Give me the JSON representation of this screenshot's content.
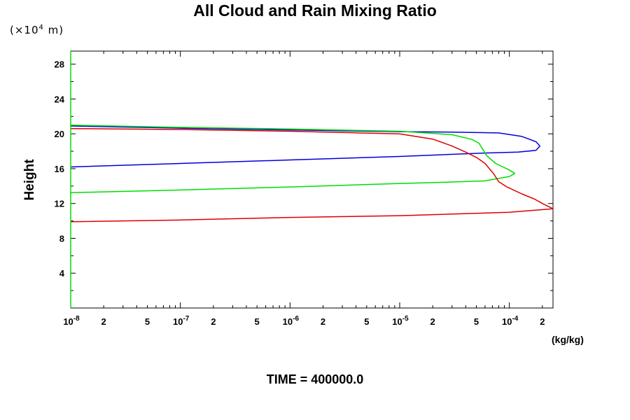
{
  "chart_data": {
    "type": "line",
    "title": "All Cloud and Rain Mixing Ratio",
    "ylabel": "Height",
    "y_scale_note": "×10",
    "y_scale_exponent": "4",
    "y_scale_unit": "m",
    "xunit": "(kg/kg)",
    "footer": "TIME = 400000.0",
    "x_scale": "log",
    "xlim": [
      1e-08,
      0.00025
    ],
    "ylim": [
      0,
      29.5
    ],
    "y_ticks": [
      4,
      8,
      12,
      16,
      20,
      24,
      28
    ],
    "y_tick_labels": [
      "4",
      "8",
      "12",
      "16",
      "20",
      "24",
      "28"
    ],
    "x_tick_labels": [
      {
        "x": 1e-08,
        "base": "10",
        "exp": "-8"
      },
      {
        "x": 2e-08,
        "text": "2"
      },
      {
        "x": 5e-08,
        "text": "5"
      },
      {
        "x": 1e-07,
        "base": "10",
        "exp": "-7"
      },
      {
        "x": 2e-07,
        "text": "2"
      },
      {
        "x": 5e-07,
        "text": "5"
      },
      {
        "x": 1e-06,
        "base": "10",
        "exp": "-6"
      },
      {
        "x": 2e-06,
        "text": "2"
      },
      {
        "x": 5e-06,
        "text": "5"
      },
      {
        "x": 1e-05,
        "base": "10",
        "exp": "-5"
      },
      {
        "x": 2e-05,
        "text": "2"
      },
      {
        "x": 5e-05,
        "text": "5"
      },
      {
        "x": 0.0001,
        "base": "10",
        "exp": "-4"
      },
      {
        "x": 0.0002,
        "text": "2"
      }
    ],
    "series": [
      {
        "color": "#0000dd",
        "points": [
          [
            1e-08,
            20.9
          ],
          [
            1e-07,
            20.65
          ],
          [
            1e-06,
            20.45
          ],
          [
            1e-05,
            20.25
          ],
          [
            3e-05,
            20.2
          ],
          [
            8e-05,
            20.1
          ],
          [
            0.00013,
            19.7
          ],
          [
            0.000175,
            19.1
          ],
          [
            0.00019,
            18.6
          ],
          [
            0.000175,
            18.1
          ],
          [
            0.00012,
            17.9
          ],
          [
            6e-05,
            17.8
          ],
          [
            1e-05,
            17.4
          ],
          [
            1e-06,
            17.0
          ],
          [
            1e-07,
            16.6
          ],
          [
            1e-08,
            16.2
          ]
        ]
      },
      {
        "color": "#00dd00",
        "points": [
          [
            1e-08,
            21.0
          ],
          [
            1e-07,
            20.75
          ],
          [
            1e-06,
            20.55
          ],
          [
            1e-05,
            20.3
          ],
          [
            3e-05,
            19.9
          ],
          [
            4.6e-05,
            19.35
          ],
          [
            5.3e-05,
            18.9
          ],
          [
            5.8e-05,
            18.1
          ],
          [
            6.2e-05,
            17.5
          ],
          [
            7.5e-05,
            16.6
          ],
          [
            9.8e-05,
            15.9
          ],
          [
            0.000112,
            15.45
          ],
          [
            0.0001,
            15.1
          ],
          [
            6e-05,
            14.6
          ],
          [
            2e-05,
            14.4
          ],
          [
            1e-05,
            14.3
          ],
          [
            1e-06,
            13.9
          ],
          [
            1e-07,
            13.55
          ],
          [
            1e-08,
            13.25
          ]
        ]
      },
      {
        "color": "#dd0000",
        "points": [
          [
            1e-08,
            20.6
          ],
          [
            1e-07,
            20.5
          ],
          [
            1e-06,
            20.3
          ],
          [
            1e-05,
            20.0
          ],
          [
            2e-05,
            19.4
          ],
          [
            3e-05,
            18.6
          ],
          [
            4e-05,
            17.9
          ],
          [
            5e-05,
            17.3
          ],
          [
            6e-05,
            16.6
          ],
          [
            7.2e-05,
            15.4
          ],
          [
            8e-05,
            14.5
          ],
          [
            9.5e-05,
            13.9
          ],
          [
            0.00013,
            13.1
          ],
          [
            0.00017,
            12.5
          ],
          [
            0.0002,
            12.0
          ],
          [
            0.00025,
            11.4
          ],
          [
            0.0001,
            11.0
          ],
          [
            1e-05,
            10.6
          ],
          [
            1e-06,
            10.4
          ],
          [
            1e-07,
            10.1
          ],
          [
            1e-08,
            9.9
          ]
        ]
      }
    ]
  }
}
